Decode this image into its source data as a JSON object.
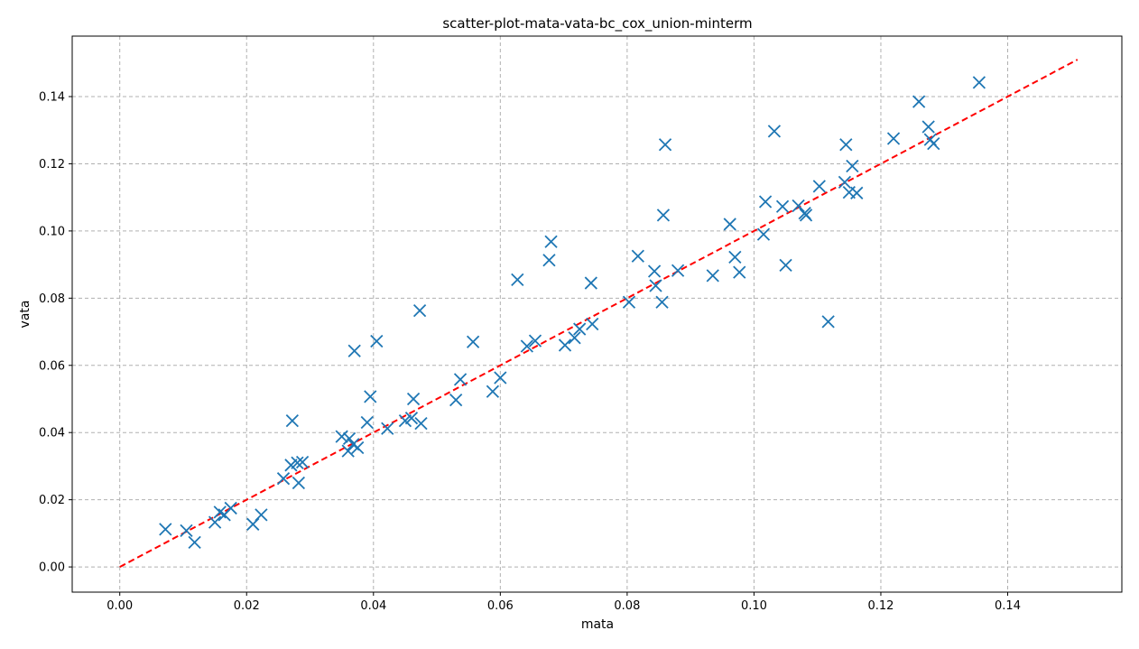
{
  "chart_data": {
    "type": "scatter",
    "title": "scatter-plot-mata-vata-bc_cox_union-minterm",
    "xlabel": "mata",
    "ylabel": "vata",
    "xlim": [
      -0.0075,
      0.158
    ],
    "ylim": [
      -0.0075,
      0.158
    ],
    "x_ticks": [
      0.0,
      0.02,
      0.04,
      0.06,
      0.08,
      0.1,
      0.12,
      0.14
    ],
    "x_tick_labels": [
      "0.00",
      "0.02",
      "0.04",
      "0.06",
      "0.08",
      "0.10",
      "0.12",
      "0.14"
    ],
    "y_ticks": [
      0.0,
      0.02,
      0.04,
      0.06,
      0.08,
      0.1,
      0.12,
      0.14
    ],
    "y_tick_labels": [
      "0.00",
      "0.02",
      "0.04",
      "0.06",
      "0.08",
      "0.10",
      "0.12",
      "0.14"
    ],
    "grid": true,
    "marker": "x",
    "marker_color": "#1f77b4",
    "reference_line": {
      "x": [
        0.0,
        0.151
      ],
      "y": [
        0.0,
        0.151
      ],
      "color": "#ff0000",
      "style": "dashed"
    },
    "points": [
      [
        0.0072,
        0.0112
      ],
      [
        0.0105,
        0.0108
      ],
      [
        0.0118,
        0.0073
      ],
      [
        0.015,
        0.0133
      ],
      [
        0.0158,
        0.0163
      ],
      [
        0.0165,
        0.0155
      ],
      [
        0.0175,
        0.0175
      ],
      [
        0.021,
        0.0127
      ],
      [
        0.0223,
        0.0155
      ],
      [
        0.0258,
        0.0263
      ],
      [
        0.027,
        0.0303
      ],
      [
        0.0272,
        0.0435
      ],
      [
        0.028,
        0.031
      ],
      [
        0.0282,
        0.025
      ],
      [
        0.0288,
        0.0312
      ],
      [
        0.035,
        0.0388
      ],
      [
        0.036,
        0.0345
      ],
      [
        0.0362,
        0.0382
      ],
      [
        0.0368,
        0.0365
      ],
      [
        0.037,
        0.0643
      ],
      [
        0.0375,
        0.0355
      ],
      [
        0.039,
        0.043
      ],
      [
        0.0395,
        0.0507
      ],
      [
        0.0405,
        0.0672
      ],
      [
        0.0422,
        0.0412
      ],
      [
        0.045,
        0.0435
      ],
      [
        0.046,
        0.0443
      ],
      [
        0.0463,
        0.05
      ],
      [
        0.0473,
        0.0763
      ],
      [
        0.0475,
        0.0427
      ],
      [
        0.053,
        0.0497
      ],
      [
        0.0537,
        0.0558
      ],
      [
        0.0557,
        0.067
      ],
      [
        0.0588,
        0.0522
      ],
      [
        0.06,
        0.0563
      ],
      [
        0.0627,
        0.0855
      ],
      [
        0.0642,
        0.0657
      ],
      [
        0.0655,
        0.0673
      ],
      [
        0.0677,
        0.0913
      ],
      [
        0.068,
        0.0968
      ],
      [
        0.0702,
        0.066
      ],
      [
        0.0717,
        0.0682
      ],
      [
        0.0725,
        0.0708
      ],
      [
        0.0743,
        0.0845
      ],
      [
        0.0745,
        0.0723
      ],
      [
        0.0803,
        0.0788
      ],
      [
        0.0817,
        0.0925
      ],
      [
        0.0843,
        0.088
      ],
      [
        0.0845,
        0.0837
      ],
      [
        0.0855,
        0.0788
      ],
      [
        0.0857,
        0.1047
      ],
      [
        0.086,
        0.1257
      ],
      [
        0.088,
        0.0882
      ],
      [
        0.0935,
        0.0867
      ],
      [
        0.0962,
        0.102
      ],
      [
        0.097,
        0.0922
      ],
      [
        0.0977,
        0.0877
      ],
      [
        0.1015,
        0.099
      ],
      [
        0.1018,
        0.1087
      ],
      [
        0.1032,
        0.1297
      ],
      [
        0.1045,
        0.1073
      ],
      [
        0.105,
        0.0898
      ],
      [
        0.107,
        0.1075
      ],
      [
        0.108,
        0.1053
      ],
      [
        0.1082,
        0.1047
      ],
      [
        0.1103,
        0.1133
      ],
      [
        0.1117,
        0.073
      ],
      [
        0.1143,
        0.1145
      ],
      [
        0.1145,
        0.1257
      ],
      [
        0.115,
        0.1115
      ],
      [
        0.1155,
        0.1193
      ],
      [
        0.1162,
        0.1113
      ],
      [
        0.122,
        0.1275
      ],
      [
        0.126,
        0.1385
      ],
      [
        0.1275,
        0.131
      ],
      [
        0.1278,
        0.1272
      ],
      [
        0.1283,
        0.126
      ],
      [
        0.1355,
        0.1442
      ]
    ]
  }
}
